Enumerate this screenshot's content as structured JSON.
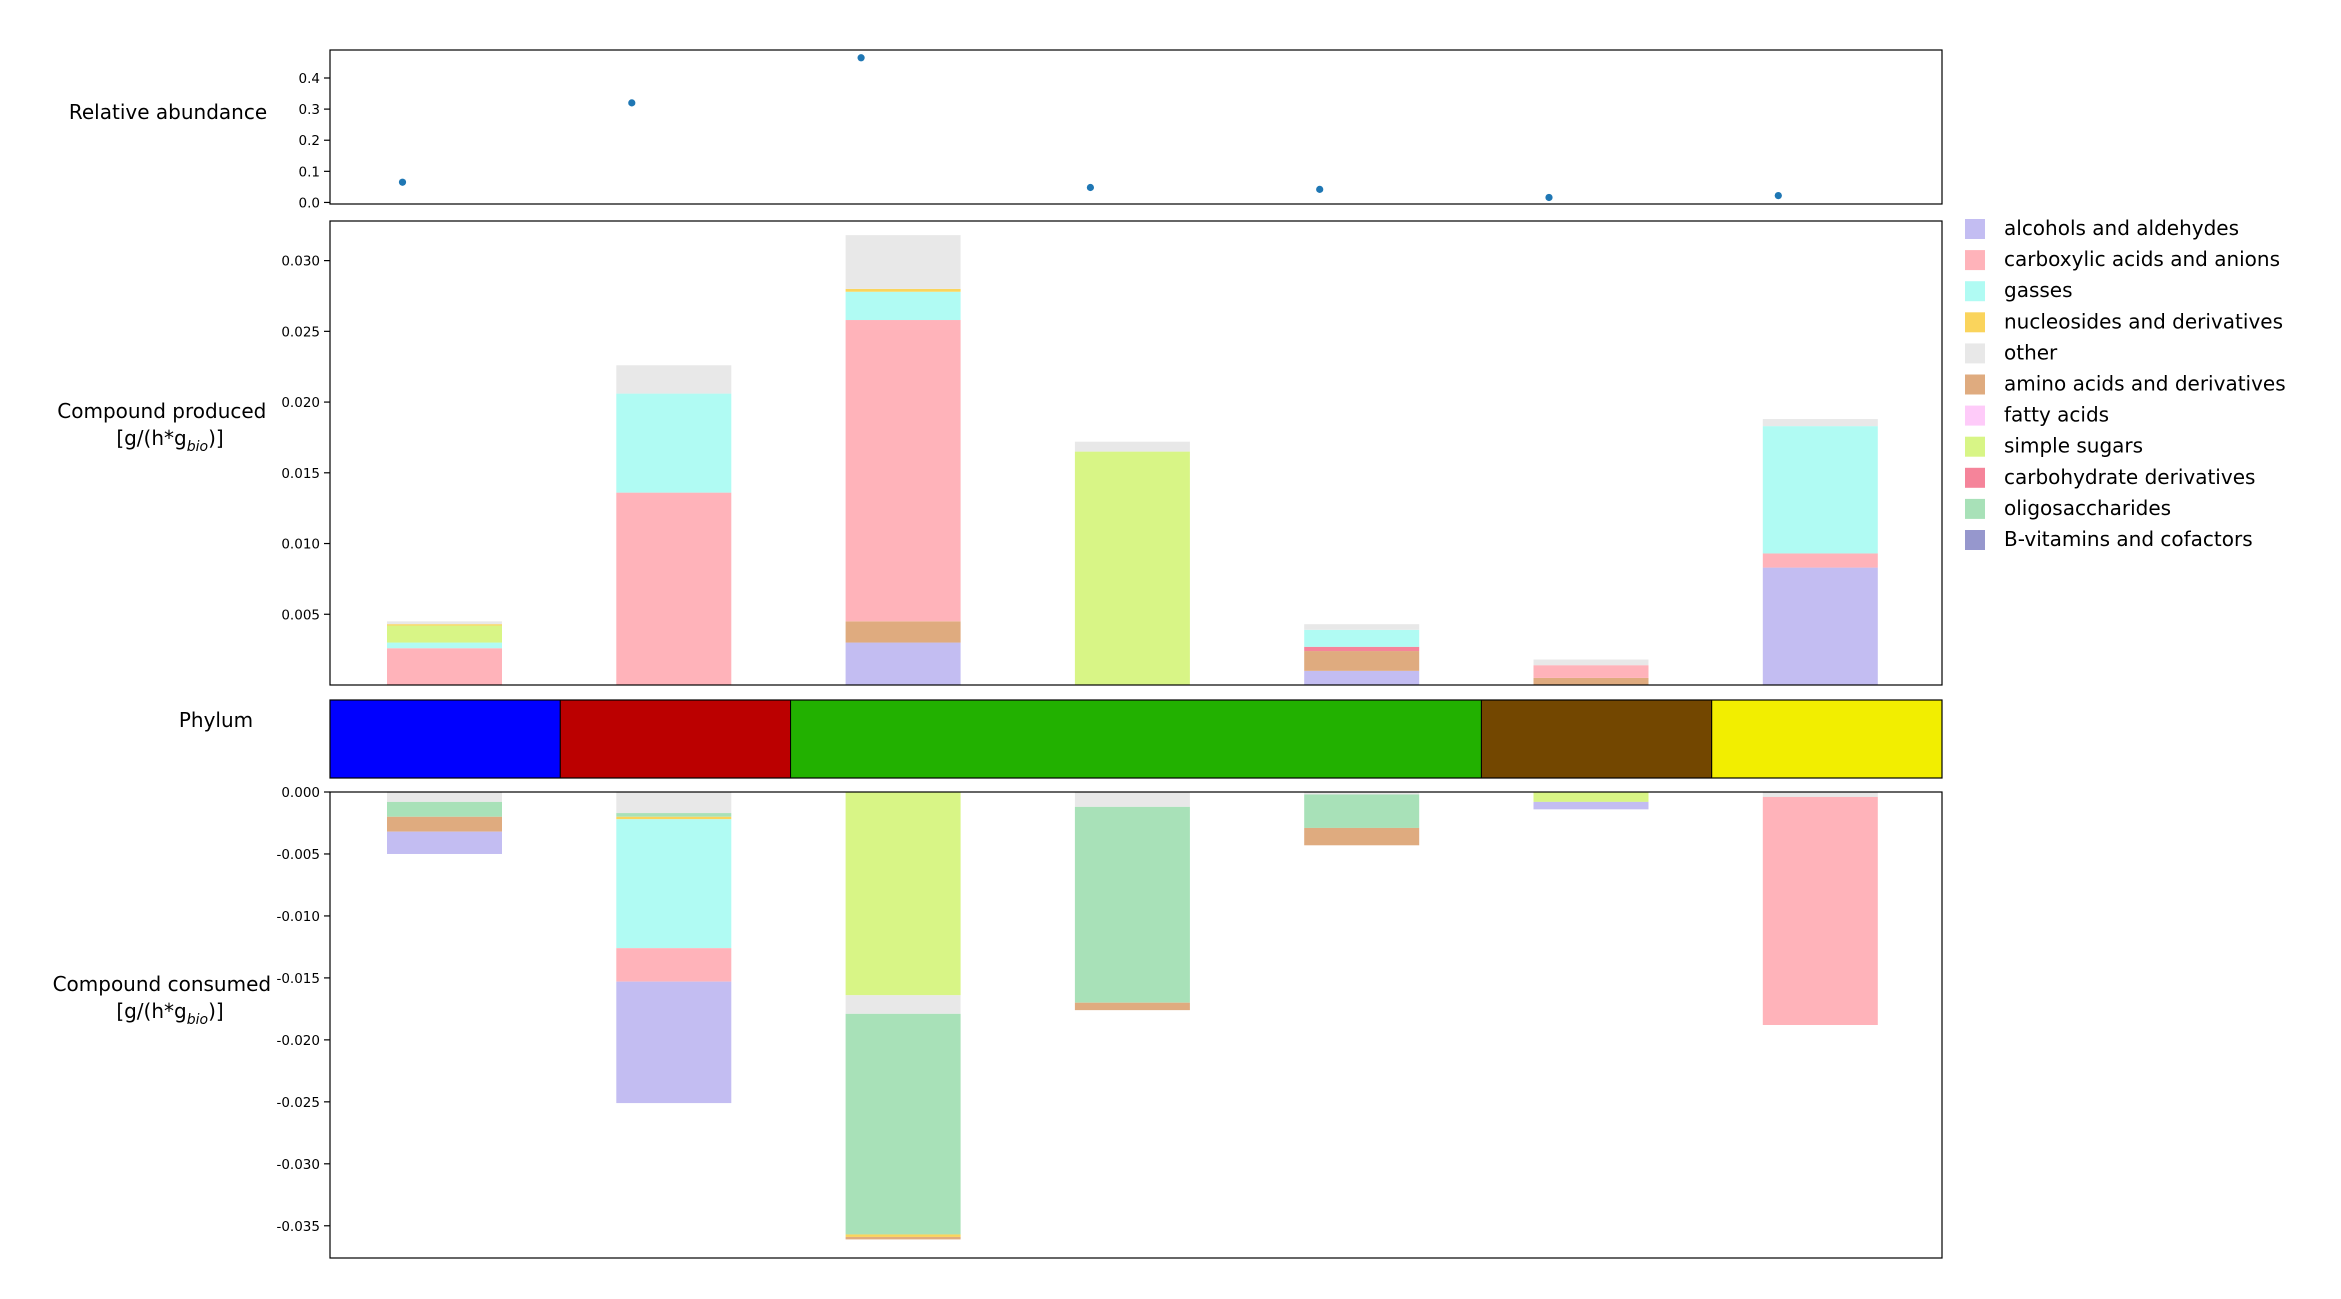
{
  "chart_data": [
    {
      "type": "scatter",
      "ylabel": "Relative abundance",
      "ylim": [
        -0.005,
        0.49
      ],
      "yticks": [
        "0.0",
        "0.1",
        "0.2",
        "0.3",
        "0.4"
      ],
      "x": [
        0,
        1,
        2,
        3,
        4,
        5,
        6
      ],
      "values": [
        0.065,
        0.32,
        0.465,
        0.048,
        0.042,
        0.016,
        0.022
      ],
      "color": "#1f77b4"
    },
    {
      "type": "bar",
      "stacked": true,
      "ylabel_line1": "Compound produced",
      "ylabel_line2_pre": "[g/(h*g",
      "ylabel_line2_sub": "bio",
      "ylabel_line2_post": ")]",
      "ylim": [
        0,
        0.0328
      ],
      "yticks": [
        "0.005",
        "0.010",
        "0.015",
        "0.020",
        "0.025",
        "0.030"
      ],
      "series": [
        {
          "name": "alcohols and aldehydes",
          "values": [
            0,
            0,
            0.003,
            0,
            0.001,
            0,
            0.0083
          ]
        },
        {
          "name": "amino acids and derivatives",
          "values": [
            0,
            0,
            0.0015,
            0,
            0.0014,
            0.0005,
            0
          ]
        },
        {
          "name": "carbohydrate derivatives",
          "values": [
            0,
            0,
            0,
            0,
            0.0003,
            0,
            0
          ]
        },
        {
          "name": "carboxylic acids and anions",
          "values": [
            0.0026,
            0.0136,
            0.0213,
            0,
            0,
            0.0009,
            0.001
          ]
        },
        {
          "name": "gasses",
          "values": [
            0.0004,
            0.007,
            0.002,
            0,
            0.0012,
            0,
            0.009
          ]
        },
        {
          "name": "simple sugars",
          "values": [
            0.0012,
            0,
            0,
            0.0165,
            0,
            0,
            0
          ]
        },
        {
          "name": "nucleosides and derivatives",
          "values": [
            0.0001,
            0,
            0.0002,
            0,
            0,
            0,
            0
          ]
        },
        {
          "name": "other",
          "values": [
            0.0002,
            0.002,
            0.0038,
            0.0007,
            0.0004,
            0.0004,
            0.0005
          ]
        }
      ]
    },
    {
      "type": "heatmap",
      "ylabel": "Phylum",
      "segments": [
        {
          "color": "#0000ff",
          "units": 1
        },
        {
          "color": "#bb0000",
          "units": 1
        },
        {
          "color": "#22b100",
          "units": 3
        },
        {
          "color": "#734700",
          "units": 1
        },
        {
          "color": "#f2ee00",
          "units": 1
        }
      ]
    },
    {
      "type": "bar",
      "stacked": true,
      "ylabel_line1": "Compound consumed",
      "ylabel_line2_pre": "[g/(h*g",
      "ylabel_line2_sub": "bio",
      "ylabel_line2_post": ")]",
      "ylim": [
        -0.0376,
        0
      ],
      "yticks": [
        "0.000",
        "-0.005",
        "-0.010",
        "-0.015",
        "-0.020",
        "-0.025",
        "-0.030",
        "-0.035"
      ],
      "series": [
        {
          "name": "other",
          "values": [
            -0.0008,
            -0.0017,
            0,
            -0.0012,
            -0.0002,
            0,
            -0.0004
          ]
        },
        {
          "name": "oligosaccharides",
          "values": [
            -0.0012,
            -0.0003,
            0,
            -0.0158,
            -0.0027,
            0,
            0
          ]
        },
        {
          "name": "nucleosides and derivatives",
          "values": [
            0,
            -0.0002,
            0,
            0,
            0,
            0,
            0
          ]
        },
        {
          "name": "simple sugars",
          "values": [
            0,
            0,
            -0.0164,
            0,
            0,
            -0.0008,
            0
          ]
        },
        {
          "name": "gasses",
          "values": [
            0,
            -0.0104,
            0,
            0,
            0,
            0,
            0
          ]
        },
        {
          "name": "other",
          "values": [
            0,
            0,
            -0.0015,
            0,
            0,
            0,
            0
          ]
        },
        {
          "name": "amino acids and derivatives",
          "values": [
            -0.0012,
            0,
            0,
            -0.0006,
            -0.0014,
            0,
            0
          ]
        },
        {
          "name": "carboxylic acids and anions",
          "values": [
            0,
            -0.0027,
            0,
            0,
            0,
            0,
            -0.0184
          ]
        },
        {
          "name": "oligosaccharides",
          "values": [
            0,
            0,
            -0.0178,
            0,
            0,
            0,
            0
          ]
        },
        {
          "name": "alcohols and aldehydes",
          "values": [
            -0.0018,
            -0.0098,
            0,
            0,
            0,
            -0.0006,
            0
          ]
        },
        {
          "name": "nucleosides and derivatives",
          "values": [
            0,
            0,
            -0.0002,
            0,
            0,
            0,
            0
          ]
        },
        {
          "name": "amino acids and derivatives",
          "values": [
            0,
            0,
            -0.0002,
            0,
            0,
            0,
            0
          ]
        }
      ]
    }
  ],
  "legend": {
    "placement": "right",
    "items": [
      {
        "label": "alcohols and aldehydes",
        "color": "#c3bdf2"
      },
      {
        "label": "carboxylic acids and anions",
        "color": "#ffb3ba"
      },
      {
        "label": "gasses",
        "color": "#b0fbf3"
      },
      {
        "label": "nucleosides and derivatives",
        "color": "#fad45c"
      },
      {
        "label": "other",
        "color": "#e8e8e8"
      },
      {
        "label": "amino acids and derivatives",
        "color": "#dfab7f"
      },
      {
        "label": "fatty acids",
        "color": "#fecbf9"
      },
      {
        "label": "simple sugars",
        "color": "#d8f586"
      },
      {
        "label": "carbohydrate derivatives",
        "color": "#f5849a"
      },
      {
        "label": "oligosaccharides",
        "color": "#a8e1b8"
      },
      {
        "label": "B-vitamins and cofactors",
        "color": "#9697cd"
      }
    ]
  }
}
